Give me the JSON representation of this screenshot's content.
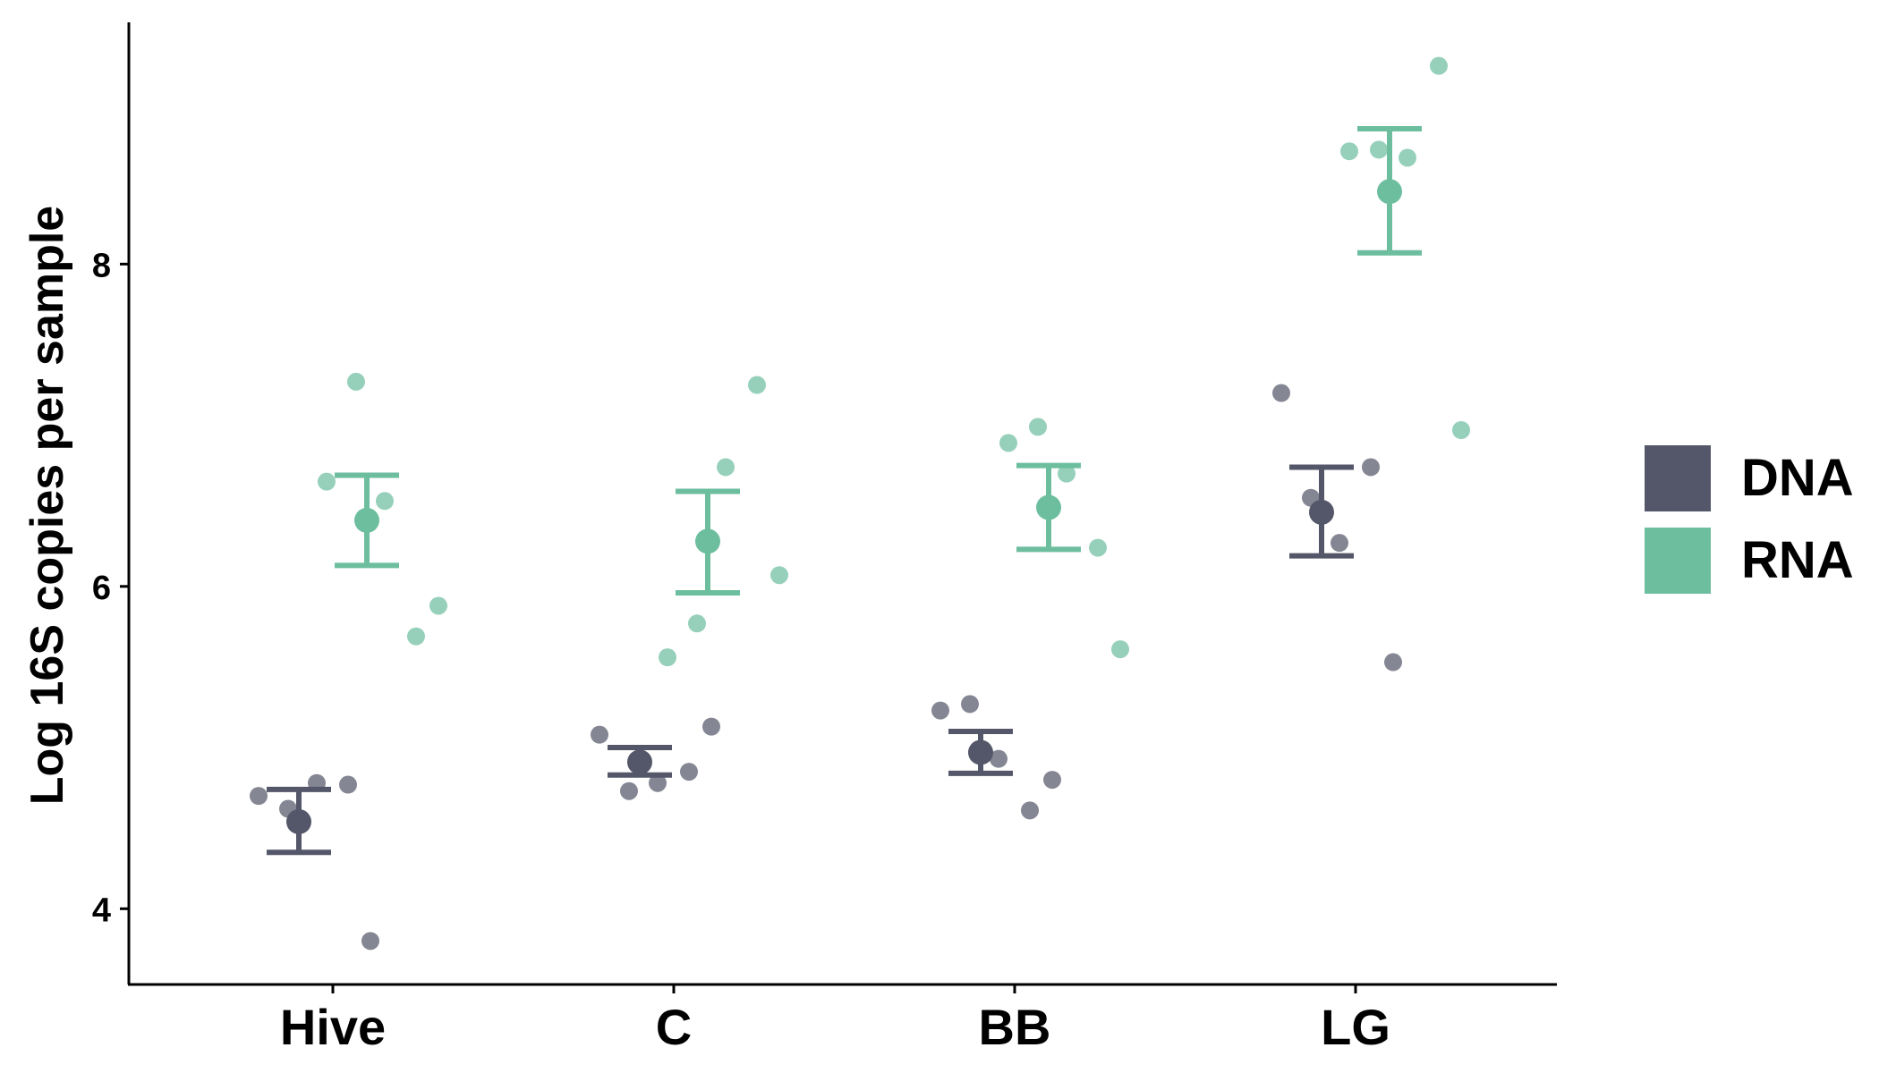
{
  "colors": {
    "DNA": "#545769",
    "RNA": "#6dbe9f",
    "axis": "#000000",
    "background": "#ffffff"
  },
  "chart_data": {
    "type": "scatter",
    "title": "",
    "xlabel": "",
    "ylabel": "Log 16S copies per sample",
    "categories": [
      "Hive",
      "C",
      "BB",
      "LG"
    ],
    "ylim": [
      3.53,
      9.5
    ],
    "yticks": [
      4,
      6,
      8
    ],
    "grid": false,
    "legend_position": "right",
    "series": [
      {
        "name": "DNA",
        "points": [
          {
            "category": "Hive",
            "value": 4.7
          },
          {
            "category": "Hive",
            "value": 4.62
          },
          {
            "category": "Hive",
            "value": 4.78
          },
          {
            "category": "Hive",
            "value": 4.77
          },
          {
            "category": "Hive",
            "value": 3.8
          },
          {
            "category": "C",
            "value": 5.08
          },
          {
            "category": "C",
            "value": 4.73
          },
          {
            "category": "C",
            "value": 4.78
          },
          {
            "category": "C",
            "value": 4.85
          },
          {
            "category": "C",
            "value": 5.13
          },
          {
            "category": "BB",
            "value": 5.23
          },
          {
            "category": "BB",
            "value": 5.27
          },
          {
            "category": "BB",
            "value": 4.93
          },
          {
            "category": "BB",
            "value": 4.61
          },
          {
            "category": "BB",
            "value": 4.8
          },
          {
            "category": "LG",
            "value": 7.2
          },
          {
            "category": "LG",
            "value": 6.55
          },
          {
            "category": "LG",
            "value": 6.27
          },
          {
            "category": "LG",
            "value": 6.74
          },
          {
            "category": "LG",
            "value": 5.53
          }
        ],
        "summary": [
          {
            "category": "Hive",
            "mean": 4.54,
            "lower": 4.35,
            "upper": 4.74
          },
          {
            "category": "C",
            "mean": 4.91,
            "lower": 4.83,
            "upper": 5.0
          },
          {
            "category": "BB",
            "mean": 4.97,
            "lower": 4.84,
            "upper": 5.1
          },
          {
            "category": "LG",
            "mean": 6.46,
            "lower": 6.19,
            "upper": 6.74
          }
        ]
      },
      {
        "name": "RNA",
        "points": [
          {
            "category": "Hive",
            "value": 6.65
          },
          {
            "category": "Hive",
            "value": 7.27
          },
          {
            "category": "Hive",
            "value": 6.53
          },
          {
            "category": "Hive",
            "value": 5.69
          },
          {
            "category": "Hive",
            "value": 5.88
          },
          {
            "category": "C",
            "value": 5.56
          },
          {
            "category": "C",
            "value": 5.77
          },
          {
            "category": "C",
            "value": 6.74
          },
          {
            "category": "C",
            "value": 7.25
          },
          {
            "category": "C",
            "value": 6.07
          },
          {
            "category": "BB",
            "value": 6.89
          },
          {
            "category": "BB",
            "value": 6.99
          },
          {
            "category": "BB",
            "value": 6.7
          },
          {
            "category": "BB",
            "value": 6.24
          },
          {
            "category": "BB",
            "value": 5.61
          },
          {
            "category": "LG",
            "value": 8.7
          },
          {
            "category": "LG",
            "value": 8.71
          },
          {
            "category": "LG",
            "value": 8.66
          },
          {
            "category": "LG",
            "value": 9.23
          },
          {
            "category": "LG",
            "value": 6.97
          }
        ],
        "summary": [
          {
            "category": "Hive",
            "mean": 6.41,
            "lower": 6.13,
            "upper": 6.69
          },
          {
            "category": "C",
            "mean": 6.28,
            "lower": 5.96,
            "upper": 6.59
          },
          {
            "category": "BB",
            "mean": 6.49,
            "lower": 6.23,
            "upper": 6.75
          },
          {
            "category": "LG",
            "mean": 8.45,
            "lower": 8.07,
            "upper": 8.84
          }
        ]
      }
    ]
  }
}
